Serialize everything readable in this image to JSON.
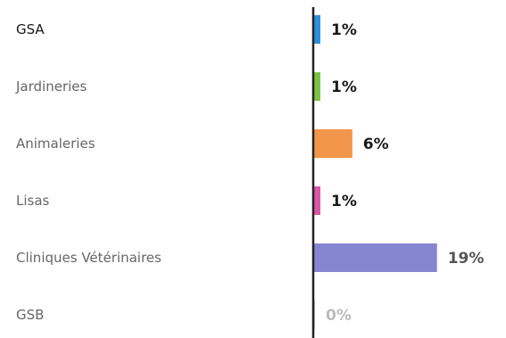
{
  "chart_data": {
    "type": "bar",
    "orientation": "horizontal",
    "categories": [
      "GSA",
      "Jardineries",
      "Animaleries",
      "Lisas",
      "Cliniques Vétérinaires",
      "GSB"
    ],
    "values": [
      1,
      1,
      6,
      1,
      19,
      0
    ],
    "value_labels": [
      "1%",
      "1%",
      "6%",
      "1%",
      "19%",
      "0%"
    ],
    "unit": "%",
    "title": "",
    "xlabel": "",
    "ylabel": "",
    "grid": false,
    "legend": "none",
    "bar_colors": [
      "#2f8fd8",
      "#7cc243",
      "#f0954a",
      "#d957a6",
      "#8585d2",
      "#cccccc"
    ],
    "category_label_colors": [
      "#1a1a1a",
      "#666666",
      "#666666",
      "#666666",
      "#666666",
      "#666666"
    ],
    "value_label_colors": [
      "#1a1a1a",
      "#1a1a1a",
      "#1a1a1a",
      "#1a1a1a",
      "#555555",
      "#bbbbbb"
    ],
    "axis_color": "#222222"
  }
}
